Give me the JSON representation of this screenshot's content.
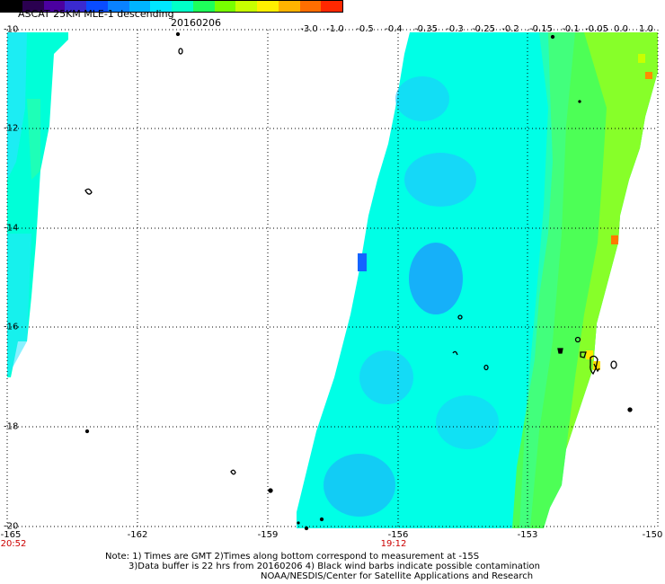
{
  "header": {
    "title": "ASCAT 25KM MLE-1 descending",
    "date": "20160206"
  },
  "colorbar": {
    "labels": [
      "-3.0",
      "-1.0",
      "-0.5",
      "-0.4",
      "-0.35",
      "-0.3",
      "-0.25",
      "-0.2",
      "-0.15",
      "-0.1",
      "-0.05",
      "0.0",
      "1.0"
    ],
    "colors": [
      "#000000",
      "#2a0050",
      "#4b00a0",
      "#3a2ad0",
      "#0a4cff",
      "#0a82ff",
      "#00b4ff",
      "#00e6ff",
      "#00ffc8",
      "#1eff5a",
      "#78ff00",
      "#c8ff00",
      "#fff000",
      "#ffb400",
      "#ff6e00",
      "#ff2800"
    ]
  },
  "axes": {
    "lat_labels": [
      "-10",
      "-12",
      "-14",
      "-16",
      "-18",
      "-20"
    ],
    "lon_labels": [
      "-165",
      "-162",
      "-159",
      "-156",
      "-153",
      "-150"
    ],
    "time_labels": [
      "20:52",
      "19:12"
    ]
  },
  "notes": [
    "Note: 1) Times are GMT 2)Times along bottom correspond to measurement at -15S",
    "3)Data buffer is 22 hrs from 20160206 4) Black wind barbs indicate possible contamination",
    "NOAA/NESDIS/Center for Satellite Applications and Research"
  ],
  "map": {
    "grid": "dotted",
    "swath_colors": {
      "dominant": "#00ffe6",
      "blue_patch": "#1eaaff",
      "green_edge": "#64ff32",
      "high_values": "#ff6e00"
    }
  }
}
